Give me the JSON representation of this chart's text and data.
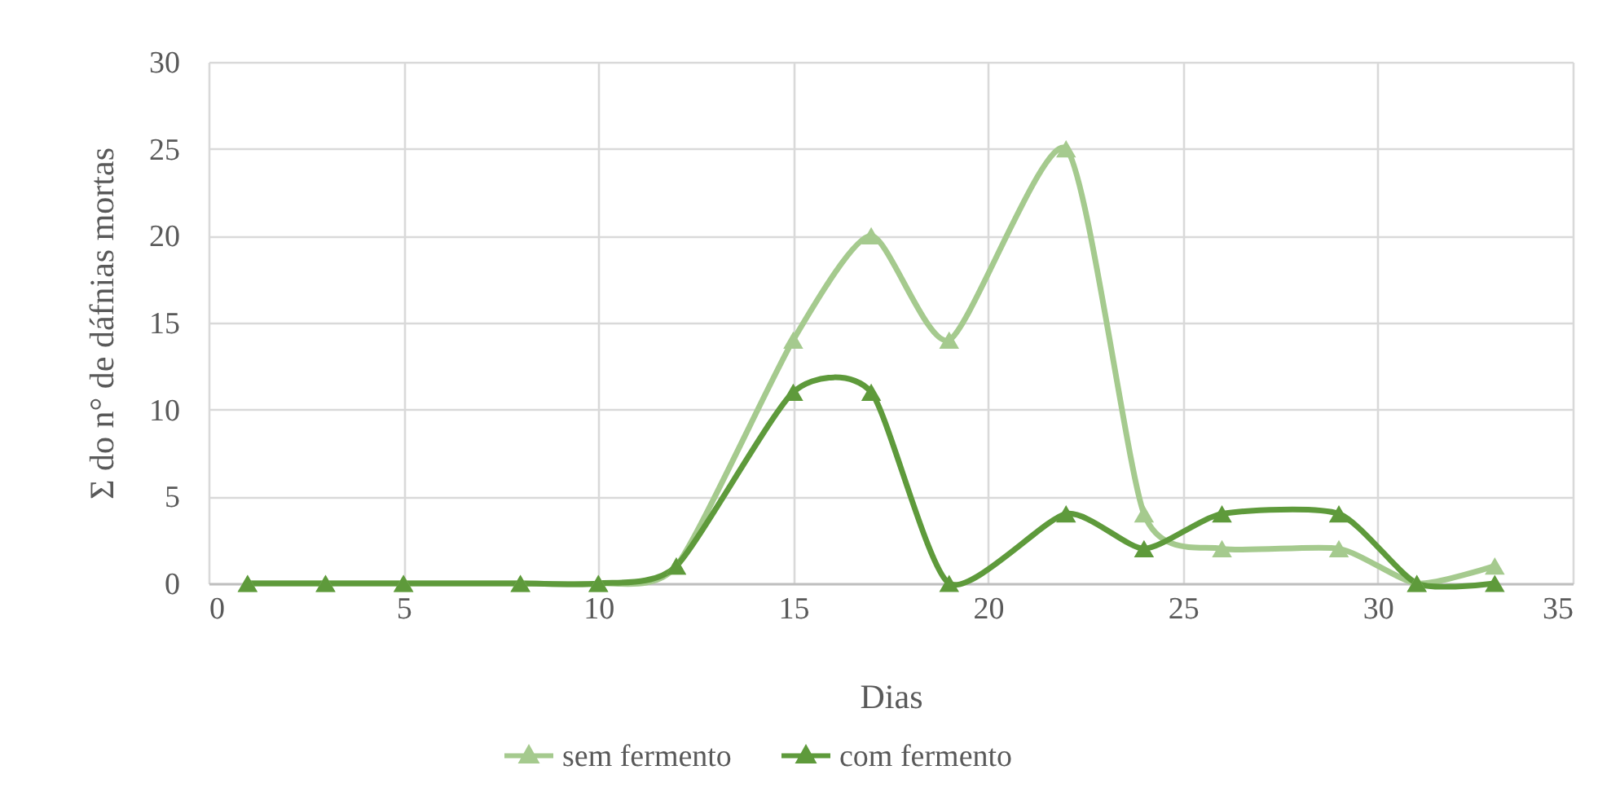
{
  "chart_data": {
    "type": "line",
    "xlabel": "Dias",
    "ylabel": "Σ do n° de dáfnias mortas",
    "x": [
      1,
      3,
      5,
      8,
      10,
      12,
      15,
      17,
      19,
      22,
      24,
      26,
      29,
      31,
      33
    ],
    "series": [
      {
        "name": "sem fermento",
        "color": "#a5ca8e",
        "values": [
          0,
          0,
          0,
          0,
          0,
          1,
          14,
          20,
          14,
          25,
          4,
          2,
          2,
          0,
          1
        ]
      },
      {
        "name": "com fermento",
        "color": "#5e9a3b",
        "values": [
          0,
          0,
          0,
          0,
          0,
          1,
          11,
          11,
          0,
          4,
          2,
          4,
          4,
          0,
          0
        ]
      }
    ],
    "xlim": [
      0,
      35
    ],
    "xticks": [
      0,
      5,
      10,
      15,
      20,
      25,
      30,
      35
    ],
    "ylim": [
      0,
      30
    ],
    "yticks": [
      0,
      5,
      10,
      15,
      20,
      25,
      30
    ],
    "grid": true,
    "legend": "bottom",
    "marker": "triangle",
    "line_style": "solid"
  }
}
